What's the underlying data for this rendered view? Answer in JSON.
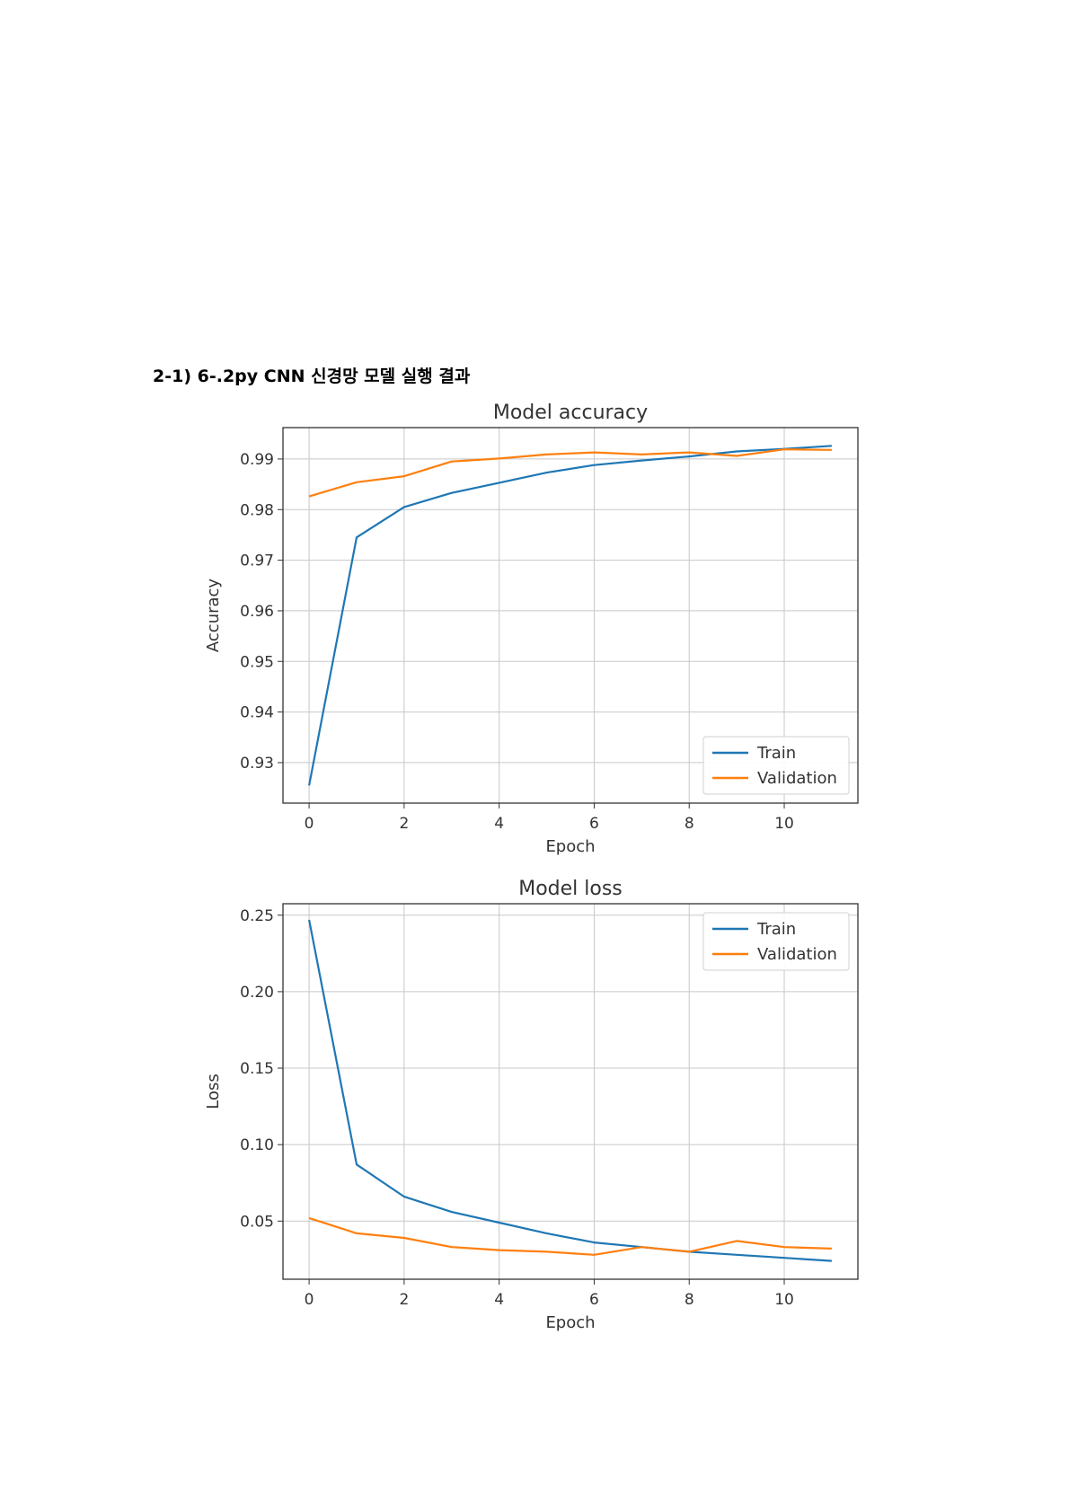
{
  "page": {
    "heading": "2-1) 6-.2py CNN 신경망 모델 실행 결과"
  },
  "chart_data": [
    {
      "type": "line",
      "title": "Model accuracy",
      "xlabel": "Epoch",
      "ylabel": "Accuracy",
      "x": [
        0,
        1,
        2,
        3,
        4,
        5,
        6,
        7,
        8,
        9,
        10,
        11
      ],
      "xticks": [
        0,
        2,
        4,
        6,
        8,
        10
      ],
      "yticks": [
        0.93,
        0.94,
        0.95,
        0.96,
        0.97,
        0.98,
        0.99
      ],
      "ytick_labels": [
        "0.93",
        "0.94",
        "0.95",
        "0.96",
        "0.97",
        "0.98",
        "0.99"
      ],
      "xlim": [
        -0.55,
        11.55
      ],
      "ylim": [
        0.922,
        0.9962
      ],
      "grid": true,
      "legend": "bottom-right",
      "series": [
        {
          "name": "Train",
          "color": "#1f77b4",
          "values": [
            0.9255,
            0.9745,
            0.9805,
            0.9833,
            0.9853,
            0.9873,
            0.9888,
            0.9897,
            0.9905,
            0.9915,
            0.992,
            0.9926
          ]
        },
        {
          "name": "Validation",
          "color": "#ff7f0e",
          "values": [
            0.9826,
            0.9854,
            0.9866,
            0.9895,
            0.9901,
            0.9909,
            0.9913,
            0.9909,
            0.9913,
            0.9906,
            0.9919,
            0.9918
          ]
        }
      ]
    },
    {
      "type": "line",
      "title": "Model loss",
      "xlabel": "Epoch",
      "ylabel": "Loss",
      "x": [
        0,
        1,
        2,
        3,
        4,
        5,
        6,
        7,
        8,
        9,
        10,
        11
      ],
      "xticks": [
        0,
        2,
        4,
        6,
        8,
        10
      ],
      "yticks": [
        0.05,
        0.1,
        0.15,
        0.2,
        0.25
      ],
      "ytick_labels": [
        "0.05",
        "0.10",
        "0.15",
        "0.20",
        "0.25"
      ],
      "xlim": [
        -0.55,
        11.55
      ],
      "ylim": [
        0.012,
        0.2575
      ],
      "grid": true,
      "legend": "top-right",
      "series": [
        {
          "name": "Train",
          "color": "#1f77b4",
          "values": [
            0.247,
            0.087,
            0.066,
            0.056,
            0.049,
            0.042,
            0.036,
            0.033,
            0.03,
            0.028,
            0.026,
            0.024
          ]
        },
        {
          "name": "Validation",
          "color": "#ff7f0e",
          "values": [
            0.052,
            0.042,
            0.039,
            0.033,
            0.031,
            0.03,
            0.028,
            0.033,
            0.03,
            0.037,
            0.033,
            0.032
          ]
        }
      ]
    }
  ]
}
